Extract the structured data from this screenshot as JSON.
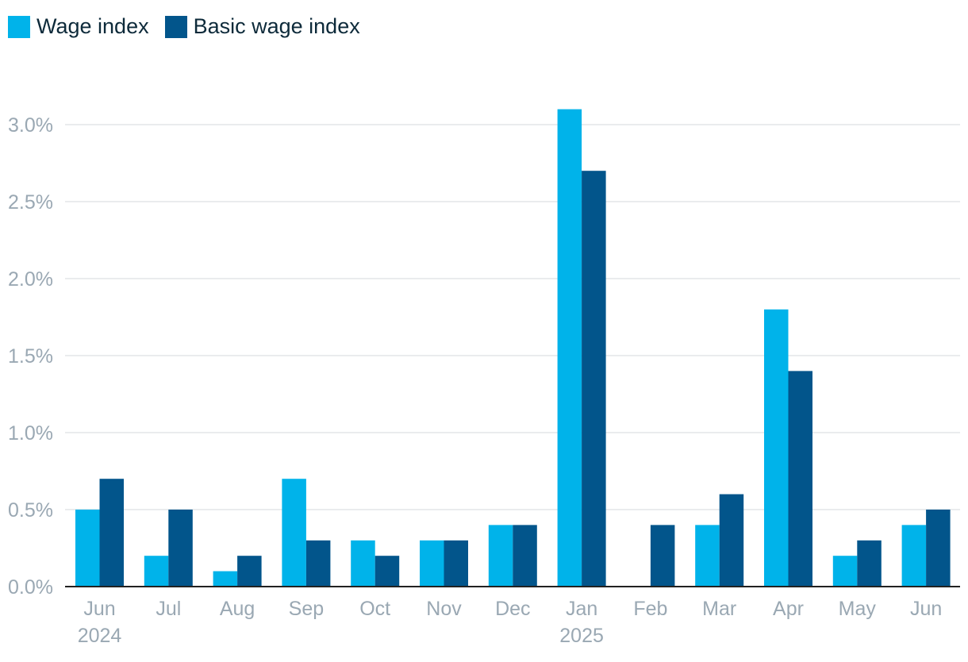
{
  "legend": {
    "items": [
      {
        "label": "Wage index",
        "color": "#00b3ea"
      },
      {
        "label": "Basic wage index",
        "color": "#02558b"
      }
    ]
  },
  "chart_data": {
    "type": "bar",
    "categories": [
      "Jun",
      "Jul",
      "Aug",
      "Sep",
      "Oct",
      "Nov",
      "Dec",
      "Jan",
      "Feb",
      "Mar",
      "Apr",
      "May",
      "Jun"
    ],
    "category_years": [
      "2024",
      "",
      "",
      "",
      "",
      "",
      "",
      "2025",
      "",
      "",
      "",
      "",
      ""
    ],
    "series": [
      {
        "name": "Wage index",
        "color": "#00b3ea",
        "values": [
          0.5,
          0.2,
          0.1,
          0.7,
          0.3,
          0.3,
          0.4,
          3.1,
          0.0,
          0.4,
          1.8,
          0.2,
          0.4
        ]
      },
      {
        "name": "Basic wage index",
        "color": "#02558b",
        "values": [
          0.7,
          0.5,
          0.2,
          0.3,
          0.2,
          0.3,
          0.4,
          2.7,
          0.4,
          0.6,
          1.4,
          0.3,
          0.5
        ]
      }
    ],
    "yticks": [
      0.0,
      0.5,
      1.0,
      1.5,
      2.0,
      2.5,
      3.0
    ],
    "ytick_labels": [
      "0.0%",
      "0.5%",
      "1.0%",
      "1.5%",
      "2.0%",
      "2.5%",
      "3.0%"
    ],
    "ylim": [
      0,
      3.0
    ],
    "grid": true,
    "legend_position": "top-left",
    "title": "",
    "xlabel": "",
    "ylabel": ""
  }
}
